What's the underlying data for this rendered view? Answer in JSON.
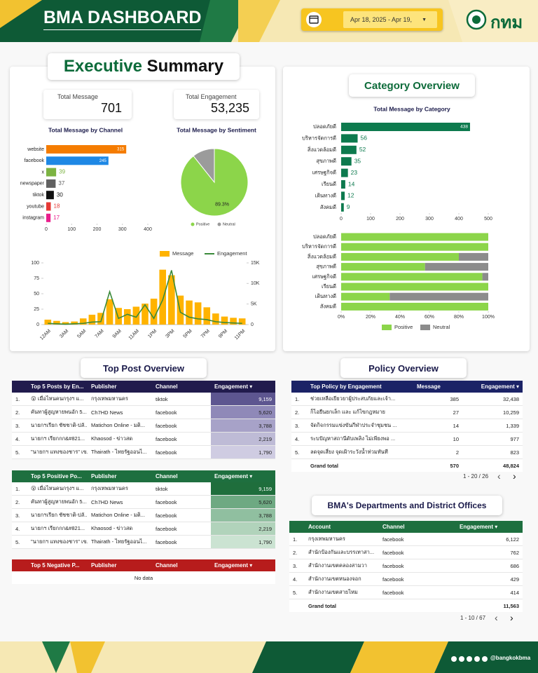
{
  "header": {
    "title": "BMA DASHBOARD",
    "date_range": "Apr 18, 2025 - Apr 19,",
    "logo_text": "กทม"
  },
  "executive_summary": {
    "title_parts": [
      "Executive",
      "Summary"
    ],
    "kpis": [
      {
        "label": "Total Message",
        "value": "701"
      },
      {
        "label": "Total Engagement",
        "value": "53,235"
      }
    ]
  },
  "category_overview": {
    "title": "Category Overview"
  },
  "chart_data": [
    {
      "type": "hbar",
      "title": "Total Message by Channel",
      "categories": [
        "website",
        "facebook",
        "x",
        "newspaper",
        "tiktok",
        "youtube",
        "instagram"
      ],
      "values": [
        315,
        245,
        39,
        37,
        30,
        18,
        17
      ],
      "colors": [
        "#f57c00",
        "#1e88e5",
        "#7cb342",
        "#616161",
        "#111111",
        "#e53935",
        "#e91e8c"
      ],
      "xlim": [
        0,
        400
      ],
      "xticks": [
        0,
        100,
        200,
        300,
        400
      ]
    },
    {
      "type": "pie",
      "title": "Total Message by Sentiment",
      "categories": [
        "Positive",
        "Neutral"
      ],
      "values": [
        89.3,
        10.7
      ],
      "value_labels": [
        "89.3%",
        null
      ],
      "colors": [
        "#8cd54a",
        "#9b9b9b"
      ]
    },
    {
      "type": "combo",
      "categories": [
        "12AM",
        null,
        "3AM",
        null,
        "5AM",
        null,
        "7AM",
        null,
        "9AM",
        null,
        "11AM",
        null,
        "1PM",
        null,
        "3PM",
        null,
        "5PM",
        null,
        "7PM",
        null,
        "9PM",
        null,
        "11PM"
      ],
      "series": [
        {
          "name": "Message",
          "type": "bar",
          "color": "#ffb300",
          "values": [
            8,
            6,
            4,
            5,
            10,
            16,
            19,
            41,
            27,
            25,
            29,
            34,
            42,
            89,
            80,
            47,
            39,
            36,
            28,
            18,
            13,
            11,
            10
          ]
        },
        {
          "name": "Engagement",
          "type": "line",
          "color": "#3a8a3a",
          "axis": "y2",
          "values": [
            300,
            200,
            100,
            200,
            300,
            600,
            700,
            8000,
            1500,
            2500,
            1800,
            4800,
            1500,
            6000,
            13200,
            3000,
            1800,
            1400,
            1200,
            700,
            500,
            400,
            300
          ]
        }
      ],
      "ylim": [
        0,
        100
      ],
      "yticks": [
        0,
        25,
        50,
        75,
        100
      ],
      "y2lim": [
        0,
        15000
      ],
      "y2ticks": [
        0,
        {
          "value": 5000,
          "label": "5K"
        },
        {
          "value": 10000,
          "label": "10K"
        },
        {
          "value": 15000,
          "label": "15K"
        }
      ]
    },
    {
      "type": "hbar",
      "title": "Total Message by Category",
      "categories": [
        "ปลอดภัยดี",
        "บริหารจัดการดี",
        "สิ่งแวดล้อมดี",
        "สุขภาพดี",
        "เศรษฐกิจดี",
        "เรียนดี",
        "เดินทางดี",
        "สังคมดี"
      ],
      "values": [
        438,
        56,
        52,
        35,
        23,
        14,
        12,
        9
      ],
      "color": "#0d7a4e",
      "xlim": [
        0,
        500
      ],
      "xticks": [
        0,
        100,
        200,
        300,
        400,
        500
      ]
    },
    {
      "type": "stacked_hbar",
      "categories": [
        "ปลอดภัยดี",
        "บริหารจัดการดี",
        "สิ่งแวดล้อมดี",
        "สุขภาพดี",
        "เศรษฐกิจดี",
        "เรียนดี",
        "เดินทางดี",
        "สังคมดี"
      ],
      "series": [
        {
          "name": "Positive",
          "color": "#8cd54a",
          "values": [
            100,
            100,
            80,
            57,
            96,
            100,
            33,
            100
          ]
        },
        {
          "name": "Neutral",
          "color": "#8c8c8c",
          "values": [
            0,
            0,
            20,
            43,
            4,
            0,
            67,
            0
          ]
        }
      ],
      "xlim": [
        0,
        100
      ],
      "xticks": [
        {
          "value": 0,
          "label": "0%"
        },
        {
          "value": 20,
          "label": "20%"
        },
        {
          "value": 40,
          "label": "40%"
        },
        {
          "value": 60,
          "label": "60%"
        },
        {
          "value": 80,
          "label": "80%"
        },
        {
          "value": 100,
          "label": "100%"
        }
      ]
    }
  ],
  "top_post_overview": {
    "title": "Top Post Overview",
    "tables": [
      {
        "columns": [
          "Top 5 Posts by En...",
          "Publisher",
          "Channel",
          "Engagement"
        ],
        "rows": [
          [
            "1.",
            "😮 เมื่อไหนคนกรุงฯ แ...",
            "กรุงเทพมหานคร",
            "tiktok",
            "9,159"
          ],
          [
            "2.",
            "คันทาผู้สูญหายพนอัก 5...",
            "Ch7HD News",
            "facebook",
            "5,620"
          ],
          [
            "3.",
            "นายกฯเรียก ชัชชาติ-ปลั...",
            "Matichon Online - มติ...",
            "facebook",
            "3,788"
          ],
          [
            "4.",
            "นายกฯ เรียกกก&#821...",
            "Khaosod - ข่าวสด",
            "facebook",
            "2,219"
          ],
          [
            "5.",
            "\"นายกฯ แทงของชาร\" เข...",
            "Thairath - ไทยรัฐออนไ...",
            "facebook",
            "1,790"
          ]
        ]
      },
      {
        "columns": [
          "Top 5 Positive Po...",
          "Publisher",
          "Channel",
          "Engagement"
        ],
        "rows": [
          [
            "1.",
            "😮 เมื่อไหนคนกรุงฯ แ...",
            "กรุงเทพมหานคร",
            "tiktok",
            "9,159"
          ],
          [
            "2.",
            "คันทาผู้สูญหายพนอัก 5...",
            "Ch7HD News",
            "facebook",
            "5,620"
          ],
          [
            "3.",
            "นายกฯเรียก ชัชชาติ-ปลั...",
            "Matichon Online - มติ...",
            "facebook",
            "3,788"
          ],
          [
            "4.",
            "นายกฯ เรียกกก&#821...",
            "Khaosod - ข่าวสด",
            "facebook",
            "2,219"
          ],
          [
            "5.",
            "\"นายกฯ แทงของชาร\" เข...",
            "Thairath - ไทยรัฐออนไ...",
            "facebook",
            "1,790"
          ]
        ]
      },
      {
        "columns": [
          "Top 5 Negative P...",
          "Publisher",
          "Channel",
          "Engagement"
        ],
        "rows": [],
        "empty_message": "No data"
      }
    ]
  },
  "policy_overview": {
    "title": "Policy Overview",
    "table": {
      "columns": [
        "Top Policy by Engagement",
        "Message",
        "Engagement"
      ],
      "rows": [
        [
          "1.",
          "ช่วยเหลือเยียวยาผู้ประสบภัยและเจ้า...",
          "385",
          "32,438"
        ],
        [
          "2.",
          "ก็ไอยืนยกเล็ก และ แก้ไขกฎหมาย",
          "27",
          "10,259"
        ],
        [
          "3.",
          "จัดกิจกรรมแข่งขันกีฬาประจำชุมชน ...",
          "14",
          "1,339"
        ],
        [
          "4.",
          "ระบปัญหาสถานีดับเพลิง ไม่เพียงพอ ...",
          "10",
          "977"
        ],
        [
          "5.",
          "ลดจุดเสี่ยง จุดเฝ้าระวังน้ำท่วมทันที",
          "2",
          "823"
        ]
      ],
      "grand_total": {
        "label": "Grand total",
        "values": [
          "570",
          "48,824"
        ]
      },
      "pagination": "1 - 20 / 26"
    }
  },
  "departments": {
    "title": "BMA's Departments and District Offices",
    "table": {
      "columns": [
        "Account",
        "Channel",
        "Engagement"
      ],
      "rows": [
        [
          "1.",
          "กรุงเทพมหานคร",
          "facebook",
          "6,122"
        ],
        [
          "2.",
          "สำนักป้องกันและบรรเทาสา...",
          "facebook",
          "762"
        ],
        [
          "3.",
          "สำนักงานเขตคลองสามวา",
          "facebook",
          "686"
        ],
        [
          "4.",
          "สำนักงานเขตหนองจอก",
          "facebook",
          "429"
        ],
        [
          "5.",
          "สำนักงานเขตสายไหม",
          "facebook",
          "414"
        ]
      ],
      "grand_total": {
        "label": "Grand total",
        "values": [
          "11,563"
        ]
      },
      "pagination": "1 - 10 / 67"
    }
  },
  "footer": {
    "handle": "@bangkokbma"
  }
}
